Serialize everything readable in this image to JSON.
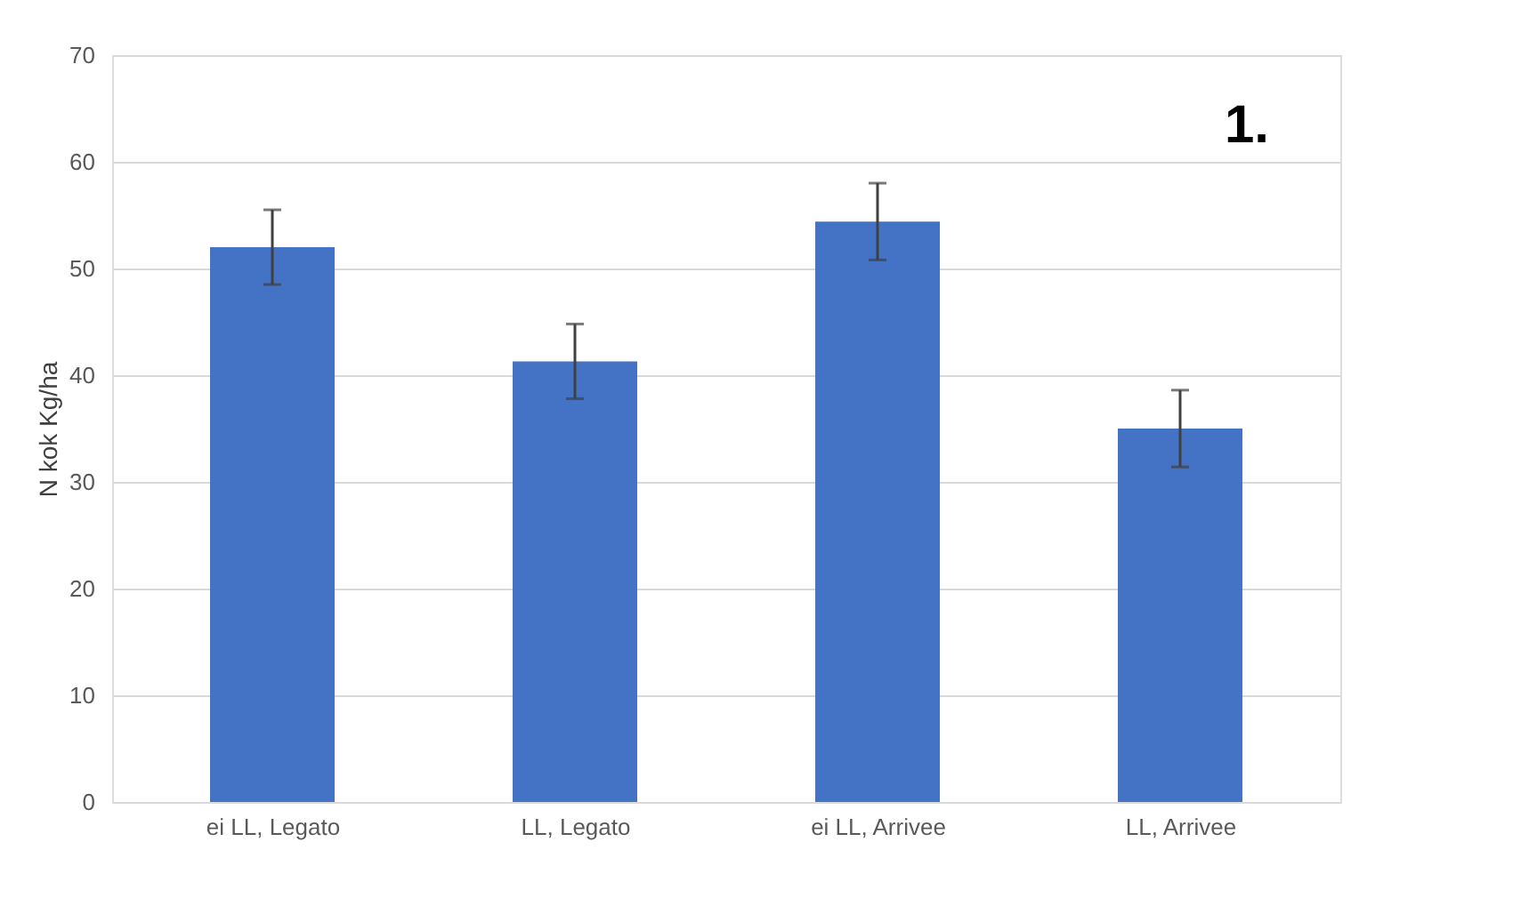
{
  "chart_data": {
    "type": "bar",
    "ylabel": "N kok Kg/ha",
    "categories": [
      "ei LL, Legato",
      "LL, Legato",
      "ei LL, Arrivee",
      "LL, Arrivee"
    ],
    "values": [
      52,
      41.3,
      54.4,
      35
    ],
    "errors": [
      3.5,
      3.5,
      3.6,
      3.6
    ],
    "color": "#4472c4",
    "ylim": [
      0,
      70
    ],
    "yticks": [
      0,
      10,
      20,
      30,
      40,
      50,
      60,
      70
    ],
    "grid": "y",
    "annotations": [
      "1."
    ]
  }
}
